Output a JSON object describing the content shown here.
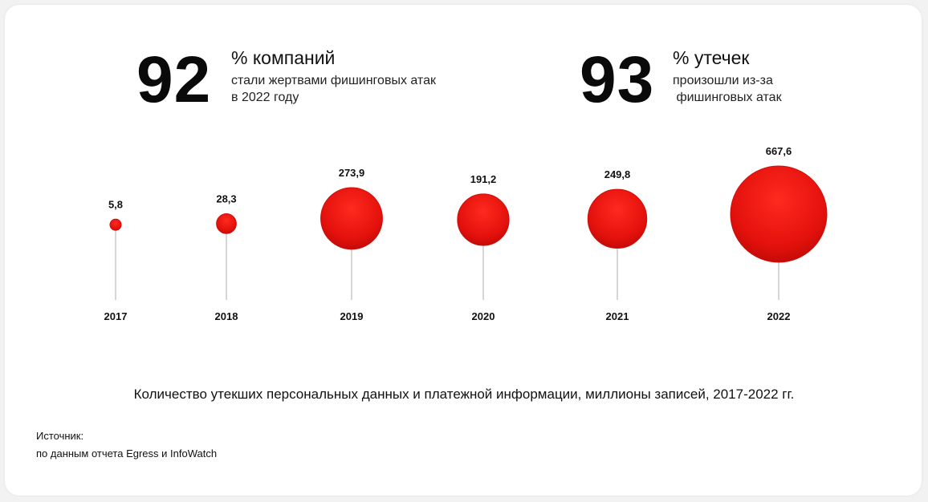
{
  "stats": [
    {
      "number": "92",
      "headline": "% компаний",
      "sub": "стали жертвами фишинговых атак\nв 2022 году"
    },
    {
      "number": "93",
      "headline": "% утечек",
      "sub": "произошли из-за\n фишинговых атак"
    }
  ],
  "chart_data": {
    "type": "bubble",
    "categories": [
      "2017",
      "2018",
      "2019",
      "2020",
      "2021",
      "2022"
    ],
    "values": [
      5.8,
      28.3,
      273.9,
      191.2,
      249.8,
      667.6
    ],
    "value_labels": [
      "5,8",
      "28,3",
      "273,9",
      "191,2",
      "249,8",
      "667,6"
    ],
    "title": "Количество утекших персональных данных и платежной информации, миллионы записей, 2017-2022 гг.",
    "bubble_color": "#e8140f",
    "stem_color": "#c8c8c8"
  },
  "source": {
    "label": "Источник:",
    "text": "по данным отчета Egress и InfoWatch"
  }
}
